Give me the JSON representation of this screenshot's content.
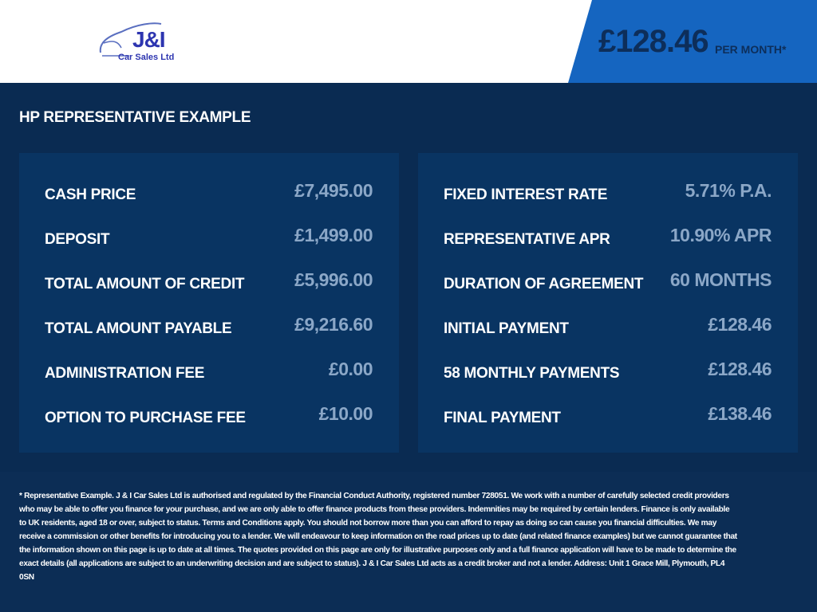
{
  "header": {
    "logo_text": "J&I",
    "logo_subtext": "Car Sales Ltd",
    "monthly_price": "£128.46",
    "per_month_label": "PER MONTH*"
  },
  "main": {
    "title": "HP REPRESENTATIVE EXAMPLE",
    "left": [
      {
        "label": "CASH PRICE",
        "value": "£7,495.00"
      },
      {
        "label": "DEPOSIT",
        "value": "£1,499.00"
      },
      {
        "label": "TOTAL AMOUNT OF CREDIT",
        "value": "£5,996.00"
      },
      {
        "label": "TOTAL AMOUNT PAYABLE",
        "value": "£9,216.60"
      },
      {
        "label": "ADMINISTRATION FEE",
        "value": "£0.00"
      },
      {
        "label": "OPTION TO PURCHASE FEE",
        "value": "£10.00"
      }
    ],
    "right": [
      {
        "label": "FIXED INTEREST RATE",
        "value": "5.71% P.A."
      },
      {
        "label": "REPRESENTATIVE APR",
        "value": "10.90% APR"
      },
      {
        "label": "DURATION OF AGREEMENT",
        "value": "60 MONTHS"
      },
      {
        "label": "INITIAL PAYMENT",
        "value": "£128.46"
      },
      {
        "label": "58 MONTHLY PAYMENTS",
        "value": "£128.46"
      },
      {
        "label": "FINAL PAYMENT",
        "value": "£138.46"
      }
    ]
  },
  "footer": {
    "disclaimer": "* Representative Example. J & I Car Sales Ltd is authorised and regulated by the Financial Conduct Authority, registered number 728051. We work with a number of carefully selected credit providers who may be able to offer you finance for your purchase, and we are only able to offer finance products from these providers. Indemnities may be required by certain lenders. Finance is only available to UK residents, aged 18 or over, subject to status. Terms and Conditions apply. You should not borrow more than you can afford to repay as doing so can cause you financial difficulties. We may receive a commission or other benefits for introducing you to a lender. We will endeavour to keep information on the road prices up to date (and related finance examples) but we cannot guarantee that the information shown on this page is up to date at all times. The quotes provided on this page are only for illustrative purposes only and a full finance application will have to be made to determine the exact details (all applications are subject to an underwriting decision and are subject to status). J & I Car Sales Ltd acts as a credit broker and not a lender. Address: Unit 1 Grace Mill, Plymouth, PL4 0SN"
  },
  "colors": {
    "brand_blue": "#1565c0",
    "navy": "#0a2b52",
    "panel": "#093462",
    "value_text": "#8ba7c7"
  }
}
